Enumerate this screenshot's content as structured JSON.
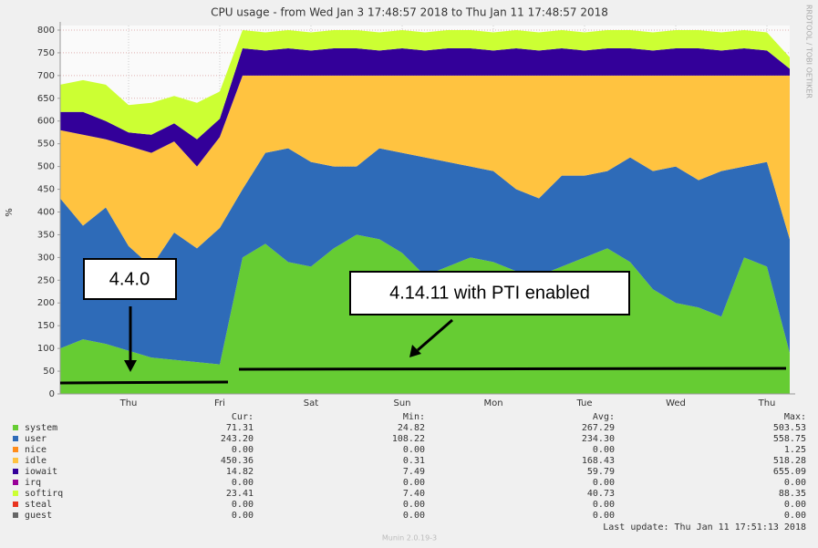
{
  "chart_data": {
    "type": "stacked_area",
    "title": "CPU usage - from Wed Jan  3 17:48:57 2018 to Thu Jan 11 17:48:57 2018",
    "ylabel": "%",
    "side_label": "RRDTOOL / TOBI OETIKER",
    "categories": [
      null,
      null,
      null,
      "Thu",
      null,
      null,
      null,
      "Fri",
      null,
      null,
      null,
      "Sat",
      null,
      null,
      null,
      "Sun",
      null,
      null,
      null,
      "Mon",
      null,
      null,
      null,
      "Tue",
      null,
      null,
      null,
      "Wed",
      null,
      null,
      null,
      "Thu",
      null
    ],
    "ylim": [
      0,
      810
    ],
    "yticks": [
      0,
      50,
      100,
      150,
      200,
      250,
      300,
      350,
      400,
      450,
      500,
      550,
      600,
      650,
      700,
      750,
      800
    ],
    "grid": true,
    "series": [
      {
        "name": "system",
        "color": "#66cc33",
        "values": [
          100,
          120,
          110,
          95,
          80,
          75,
          70,
          65,
          300,
          330,
          290,
          280,
          320,
          350,
          340,
          310,
          260,
          280,
          300,
          290,
          270,
          260,
          280,
          300,
          320,
          290,
          230,
          200,
          190,
          170,
          300,
          280,
          90
        ]
      },
      {
        "name": "user",
        "color": "#2e6bb8",
        "values": [
          330,
          250,
          300,
          230,
          200,
          280,
          250,
          300,
          150,
          200,
          250,
          230,
          180,
          150,
          200,
          220,
          260,
          230,
          200,
          200,
          180,
          170,
          200,
          180,
          170,
          230,
          260,
          300,
          280,
          320,
          200,
          230,
          250
        ]
      },
      {
        "name": "nice",
        "color": "#ff8c1a",
        "values": [
          0,
          0,
          0,
          0,
          0,
          0,
          0,
          0,
          0,
          0,
          0,
          0,
          0,
          0,
          0,
          0,
          0,
          0,
          0,
          0,
          0,
          0,
          0,
          0,
          0,
          0,
          0,
          0,
          0,
          0,
          0,
          0,
          0
        ]
      },
      {
        "name": "idle",
        "color": "#ffc340",
        "values": [
          150,
          200,
          150,
          220,
          250,
          200,
          180,
          200,
          250,
          170,
          160,
          190,
          200,
          200,
          160,
          170,
          180,
          190,
          200,
          210,
          250,
          270,
          220,
          220,
          210,
          180,
          210,
          200,
          230,
          210,
          200,
          190,
          360
        ]
      },
      {
        "name": "iowait",
        "color": "#330099",
        "values": [
          40,
          50,
          40,
          30,
          40,
          40,
          60,
          40,
          60,
          55,
          60,
          55,
          60,
          60,
          55,
          60,
          55,
          60,
          60,
          55,
          60,
          55,
          60,
          55,
          60,
          60,
          55,
          60,
          60,
          55,
          60,
          55,
          15
        ]
      },
      {
        "name": "irq",
        "color": "#990099",
        "values": [
          0,
          0,
          0,
          0,
          0,
          0,
          0,
          0,
          0,
          0,
          0,
          0,
          0,
          0,
          0,
          0,
          0,
          0,
          0,
          0,
          0,
          0,
          0,
          0,
          0,
          0,
          0,
          0,
          0,
          0,
          0,
          0,
          0
        ]
      },
      {
        "name": "softirq",
        "color": "#ccff33",
        "values": [
          60,
          70,
          80,
          60,
          70,
          60,
          80,
          60,
          40,
          40,
          40,
          40,
          40,
          40,
          40,
          40,
          40,
          40,
          40,
          40,
          40,
          40,
          40,
          40,
          40,
          40,
          40,
          40,
          40,
          40,
          40,
          40,
          25
        ]
      },
      {
        "name": "steal",
        "color": "#e8341f",
        "values": [
          0,
          0,
          0,
          0,
          0,
          0,
          0,
          0,
          0,
          0,
          0,
          0,
          0,
          0,
          0,
          0,
          0,
          0,
          0,
          0,
          0,
          0,
          0,
          0,
          0,
          0,
          0,
          0,
          0,
          0,
          0,
          0,
          0
        ]
      },
      {
        "name": "guest",
        "color": "#666666",
        "values": [
          0,
          0,
          0,
          0,
          0,
          0,
          0,
          0,
          0,
          0,
          0,
          0,
          0,
          0,
          0,
          0,
          0,
          0,
          0,
          0,
          0,
          0,
          0,
          0,
          0,
          0,
          0,
          0,
          0,
          0,
          0,
          0,
          0
        ]
      }
    ],
    "stats_headers": [
      "Cur:",
      "Min:",
      "Avg:",
      "Max:"
    ],
    "stats": [
      [
        "71.31",
        "24.82",
        "267.29",
        "503.53"
      ],
      [
        "243.20",
        "108.22",
        "234.30",
        "558.75"
      ],
      [
        "0.00",
        "0.00",
        "0.00",
        "1.25"
      ],
      [
        "450.36",
        "0.31",
        "168.43",
        "518.28"
      ],
      [
        "14.82",
        "7.49",
        "59.79",
        "655.09"
      ],
      [
        "0.00",
        "0.00",
        "0.00",
        "0.00"
      ],
      [
        "23.41",
        "7.40",
        "40.73",
        "88.35"
      ],
      [
        "0.00",
        "0.00",
        "0.00",
        "0.00"
      ],
      [
        "0.00",
        "0.00",
        "0.00",
        "0.00"
      ]
    ],
    "annotations": [
      "4.4.0",
      "4.14.11 with PTI enabled"
    ],
    "footer": "Munin 2.0.19-3",
    "last_update": "Last update: Thu Jan 11 17:51:13 2018"
  }
}
